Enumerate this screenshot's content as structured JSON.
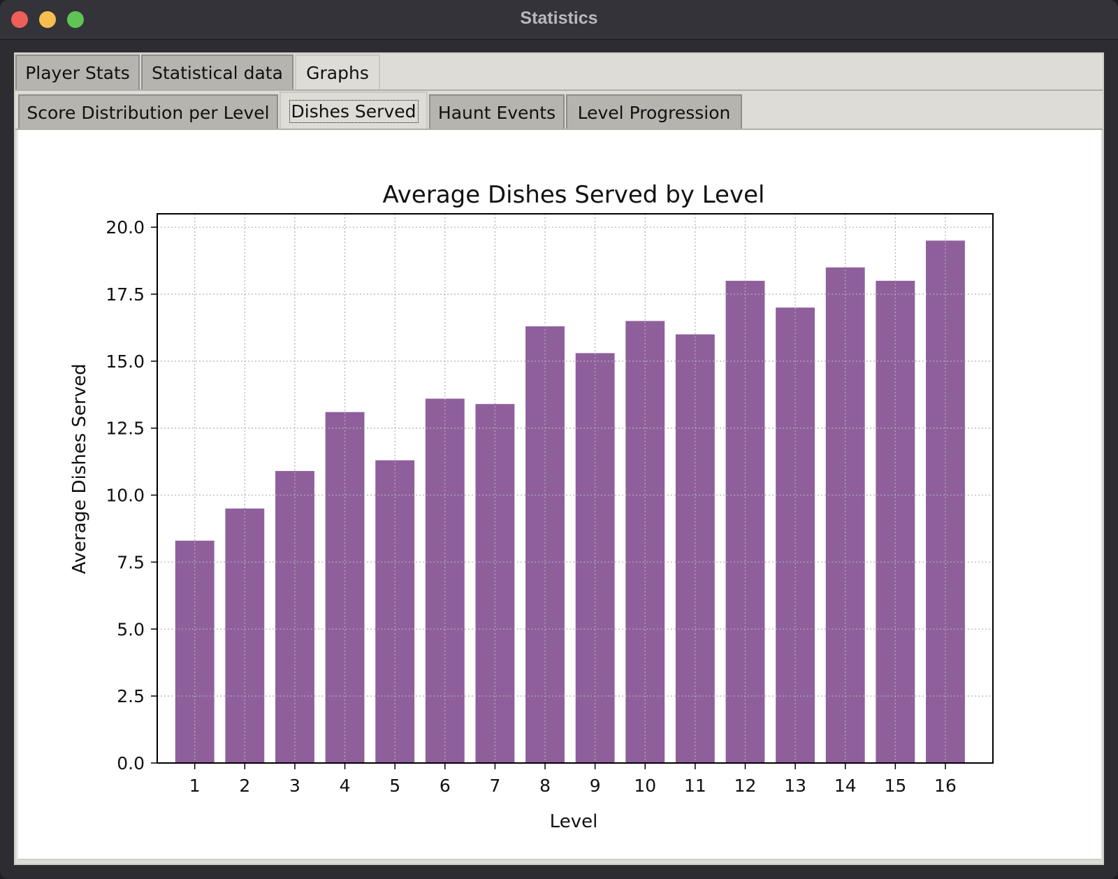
{
  "window": {
    "title": "Statistics"
  },
  "tabs_primary": [
    {
      "label": "Player Stats",
      "active": false
    },
    {
      "label": "Statistical data",
      "active": false
    },
    {
      "label": "Graphs",
      "active": true
    }
  ],
  "tabs_secondary": [
    {
      "label": "Score Distribution per Level",
      "active": false
    },
    {
      "label": "Dishes Served",
      "active": true
    },
    {
      "label": "Haunt Events",
      "active": false
    },
    {
      "label": "Level Progression",
      "active": false
    }
  ],
  "chart_data": {
    "type": "bar",
    "title": "Average Dishes Served by Level",
    "xlabel": "Level",
    "ylabel": "Average Dishes Served",
    "categories": [
      "1",
      "2",
      "3",
      "4",
      "5",
      "6",
      "7",
      "8",
      "9",
      "10",
      "11",
      "12",
      "13",
      "14",
      "15",
      "16"
    ],
    "values": [
      8.3,
      9.5,
      10.9,
      13.1,
      11.3,
      13.6,
      13.4,
      16.3,
      15.3,
      16.5,
      16.0,
      18.0,
      17.0,
      18.5,
      18.0,
      19.5
    ],
    "ylim": [
      0,
      20.5
    ],
    "yticks": [
      "0.0",
      "2.5",
      "5.0",
      "7.5",
      "10.0",
      "12.5",
      "15.0",
      "17.5",
      "20.0"
    ],
    "grid": true,
    "bar_color": "#8f5f9c"
  }
}
